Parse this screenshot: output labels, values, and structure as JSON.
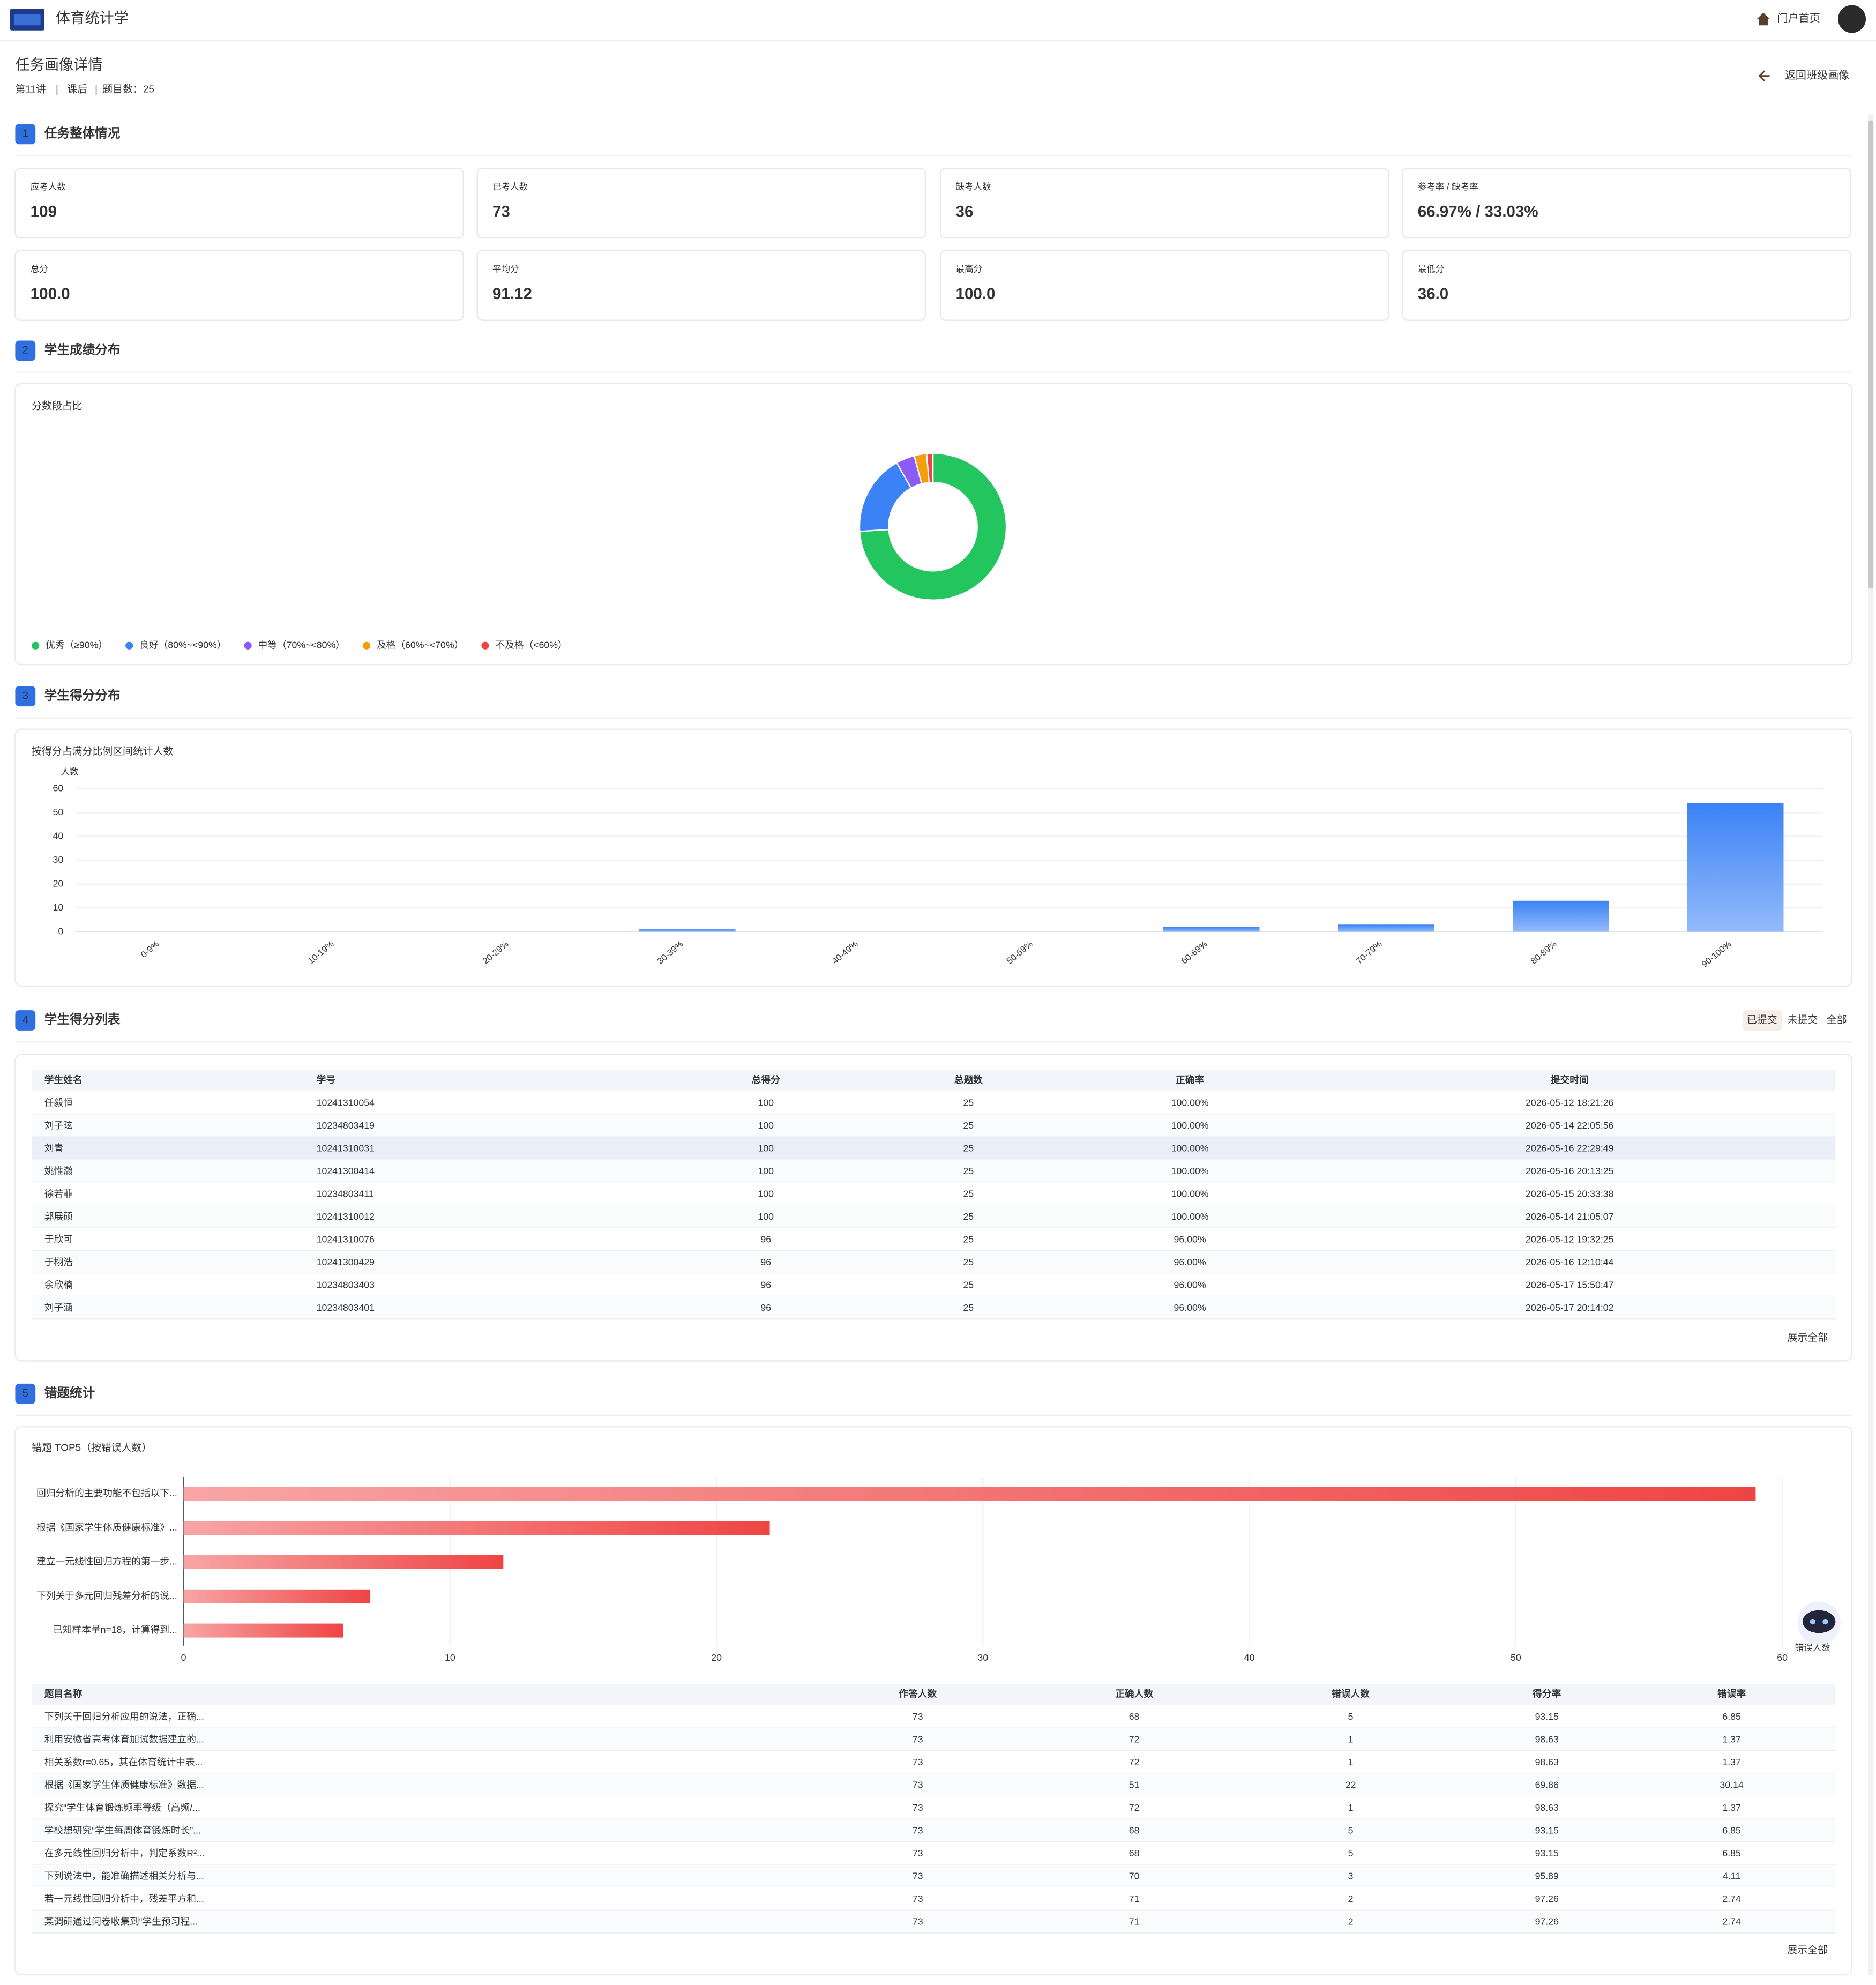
{
  "header": {
    "app_title": "体育统计学",
    "nav_home": "门户首页"
  },
  "page": {
    "title": "任务画像详情",
    "meta": [
      "第11讲",
      "课后",
      "题目数：25"
    ],
    "back": "返回班级画像"
  },
  "sections": [
    {
      "number": "1",
      "title": "任务整体情况"
    },
    {
      "number": "2",
      "title": "学生成绩分布"
    },
    {
      "number": "3",
      "title": "学生得分分布"
    },
    {
      "number": "4",
      "title": "学生得分列表"
    },
    {
      "number": "5",
      "title": "错题统计"
    }
  ],
  "overview_cards": [
    {
      "label": "应考人数",
      "value": "109"
    },
    {
      "label": "已考人数",
      "value": "73"
    },
    {
      "label": "缺考人数",
      "value": "36"
    },
    {
      "label": "参考率 / 缺考率",
      "value": "66.97% / 33.03%"
    },
    {
      "label": "总分",
      "value": "100.0"
    },
    {
      "label": "平均分",
      "value": "91.12"
    },
    {
      "label": "最高分",
      "value": "100.0"
    },
    {
      "label": "最低分",
      "value": "36.0"
    }
  ],
  "chart_data": [
    {
      "type": "pie",
      "title": "分数段占比",
      "categories": [
        "优秀（≥90%）",
        "良好（80%~<90%）",
        "中等（70%~<80%）",
        "及格（60%~<70%）",
        "不及格（<60%）"
      ],
      "values": [
        54,
        13,
        3,
        2,
        1
      ],
      "colors": [
        "#22c55e",
        "#3b82f6",
        "#8b5cf6",
        "#f59e0b",
        "#ef4444"
      ]
    },
    {
      "type": "bar",
      "title": "按得分占满分比例区间统计人数",
      "y_label": "人数",
      "categories": [
        "0-9%",
        "10-19%",
        "20-29%",
        "30-39%",
        "40-49%",
        "50-59%",
        "60-69%",
        "70-79%",
        "80-89%",
        "90-100%"
      ],
      "values": [
        0,
        0,
        0,
        1,
        0,
        0,
        2,
        3,
        13,
        54
      ],
      "ylim": [
        0,
        60
      ],
      "yticks": [
        0,
        10,
        20,
        30,
        40,
        50,
        60
      ],
      "color": "#3b82f6",
      "grid": true
    },
    {
      "type": "hbar",
      "title": "错题 TOP5（按错误人数）",
      "x_label": "错误人数",
      "categories": [
        "回归分析的主要功能不包括以下...",
        "根据《国家学生体质健康标准》...",
        "建立一元线性回归方程的第一步...",
        "下列关于多元回归残差分析的说...",
        "已知样本量n=18，计算得到..."
      ],
      "values": [
        59,
        22,
        12,
        7,
        6
      ],
      "xlim": [
        0,
        60
      ],
      "xticks": [
        0,
        10,
        20,
        30,
        40,
        50,
        60
      ],
      "color": "#ef4444",
      "grid": true
    }
  ],
  "student_table": {
    "filters": [
      "已提交",
      "未提交",
      "全部"
    ],
    "columns": [
      "学生姓名",
      "学号",
      "总得分",
      "总题数",
      "正确率",
      "提交时间"
    ],
    "rows": [
      [
        "任毅恒",
        "10241310054",
        100,
        25,
        "100.00%",
        "2026-05-12 18:21:26"
      ],
      [
        "刘子玹",
        "10234803419",
        100,
        25,
        "100.00%",
        "2026-05-14 22:05:56"
      ],
      [
        "刘青",
        "10241310031",
        100,
        25,
        "100.00%",
        "2026-05-16 22:29:49"
      ],
      [
        "姚惟瀚",
        "10241300414",
        100,
        25,
        "100.00%",
        "2026-05-16 20:13:25"
      ],
      [
        "徐若菲",
        "10234803411",
        100,
        25,
        "100.00%",
        "2026-05-15 20:33:38"
      ],
      [
        "郭展硕",
        "10241310012",
        100,
        25,
        "100.00%",
        "2026-05-14 21:05:07"
      ],
      [
        "于欣可",
        "10241310076",
        96,
        25,
        "96.00%",
        "2026-05-12 19:32:25"
      ],
      [
        "于栩浩",
        "10241300429",
        96,
        25,
        "96.00%",
        "2026-05-16 12:10:44"
      ],
      [
        "余欣楠",
        "10234803403",
        96,
        25,
        "96.00%",
        "2026-05-17 15:50:47"
      ],
      [
        "刘子涵",
        "10234803401",
        96,
        25,
        "96.00%",
        "2026-05-17 20:14:02"
      ]
    ],
    "show_all": "展示全部"
  },
  "question_table": {
    "columns": [
      "题目名称",
      "作答人数",
      "正确人数",
      "错误人数",
      "得分率",
      "错误率"
    ],
    "rows": [
      [
        "下列关于回归分析应用的说法，正确...",
        73,
        68,
        5,
        93.15,
        6.85
      ],
      [
        "利用安徽省高考体育加试数据建立的...",
        73,
        72,
        1,
        98.63,
        1.37
      ],
      [
        "相关系数r=0.65，其在体育统计中表...",
        73,
        72,
        1,
        98.63,
        1.37
      ],
      [
        "根据《国家学生体质健康标准》数据...",
        73,
        51,
        22,
        69.86,
        30.14
      ],
      [
        "探究“学生体育锻炼频率等级（高频/...",
        73,
        72,
        1,
        98.63,
        1.37
      ],
      [
        "学校想研究“学生每周体育锻炼时长”...",
        73,
        68,
        5,
        93.15,
        6.85
      ],
      [
        "在多元线性回归分析中，判定系数R²...",
        73,
        68,
        5,
        93.15,
        6.85
      ],
      [
        "下列说法中，能准确描述相关分析与...",
        73,
        70,
        3,
        95.89,
        4.11
      ],
      [
        "若一元线性回归分析中，残差平方和...",
        73,
        71,
        2,
        97.26,
        2.74
      ],
      [
        "某调研通过问卷收集到“学生预习程...",
        73,
        71,
        2,
        97.26,
        2.74
      ]
    ],
    "show_all": "展示全部"
  }
}
